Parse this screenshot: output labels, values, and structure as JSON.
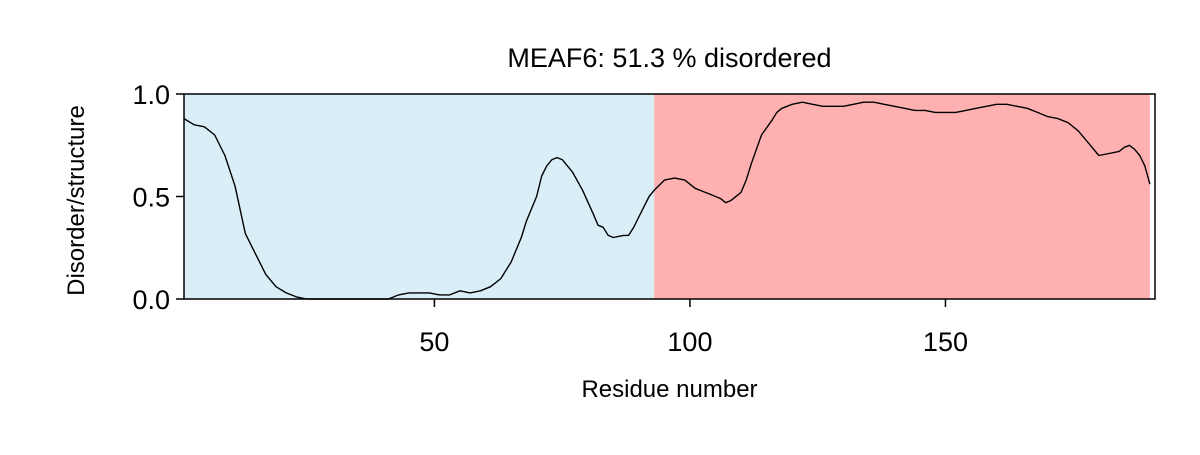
{
  "chart_data": {
    "type": "line",
    "title": "MEAF6: 51.3 % disordered",
    "xlabel": "Residue number",
    "ylabel": "Disorder/structure",
    "xlim": [
      1,
      191
    ],
    "ylim": [
      0,
      1.0
    ],
    "xticks": [
      50,
      100,
      150
    ],
    "xtick_labels": [
      "50",
      "100",
      "150"
    ],
    "yticks": [
      0.0,
      0.5,
      1.0
    ],
    "ytick_labels": [
      "0.0",
      "0.5",
      "1.0"
    ],
    "grid": false,
    "regions": [
      {
        "label": "ordered",
        "start": 1,
        "end": 93,
        "color": "#d9eef7"
      },
      {
        "label": "disordered",
        "start": 93,
        "end": 190,
        "color": "#ffb1b1"
      }
    ],
    "series": [
      {
        "color": "#000000",
        "points": [
          [
            1,
            0.88
          ],
          [
            3,
            0.85
          ],
          [
            5,
            0.84
          ],
          [
            7,
            0.8
          ],
          [
            9,
            0.7
          ],
          [
            11,
            0.55
          ],
          [
            13,
            0.32
          ],
          [
            15,
            0.22
          ],
          [
            17,
            0.12
          ],
          [
            19,
            0.06
          ],
          [
            21,
            0.03
          ],
          [
            23,
            0.01
          ],
          [
            25,
            0.0
          ],
          [
            27,
            0.0
          ],
          [
            29,
            0.0
          ],
          [
            31,
            0.0
          ],
          [
            33,
            0.0
          ],
          [
            35,
            0.0
          ],
          [
            37,
            0.0
          ],
          [
            39,
            0.0
          ],
          [
            41,
            0.0
          ],
          [
            43,
            0.02
          ],
          [
            45,
            0.03
          ],
          [
            47,
            0.03
          ],
          [
            49,
            0.03
          ],
          [
            51,
            0.02
          ],
          [
            53,
            0.02
          ],
          [
            55,
            0.04
          ],
          [
            57,
            0.03
          ],
          [
            59,
            0.04
          ],
          [
            61,
            0.06
          ],
          [
            63,
            0.1
          ],
          [
            65,
            0.18
          ],
          [
            67,
            0.3
          ],
          [
            68,
            0.38
          ],
          [
            70,
            0.5
          ],
          [
            71,
            0.6
          ],
          [
            72,
            0.65
          ],
          [
            73,
            0.68
          ],
          [
            74,
            0.69
          ],
          [
            75,
            0.68
          ],
          [
            77,
            0.62
          ],
          [
            79,
            0.53
          ],
          [
            81,
            0.42
          ],
          [
            82,
            0.36
          ],
          [
            83,
            0.35
          ],
          [
            84,
            0.31
          ],
          [
            85,
            0.3
          ],
          [
            87,
            0.31
          ],
          [
            88,
            0.31
          ],
          [
            89,
            0.35
          ],
          [
            90,
            0.4
          ],
          [
            91,
            0.45
          ],
          [
            92,
            0.5
          ],
          [
            93,
            0.53
          ],
          [
            95,
            0.58
          ],
          [
            97,
            0.59
          ],
          [
            99,
            0.58
          ],
          [
            101,
            0.54
          ],
          [
            103,
            0.52
          ],
          [
            104,
            0.51
          ],
          [
            106,
            0.49
          ],
          [
            107,
            0.47
          ],
          [
            108,
            0.48
          ],
          [
            110,
            0.52
          ],
          [
            111,
            0.58
          ],
          [
            112,
            0.66
          ],
          [
            113,
            0.73
          ],
          [
            114,
            0.8
          ],
          [
            116,
            0.87
          ],
          [
            117,
            0.91
          ],
          [
            118,
            0.93
          ],
          [
            120,
            0.95
          ],
          [
            122,
            0.96
          ],
          [
            124,
            0.95
          ],
          [
            126,
            0.94
          ],
          [
            128,
            0.94
          ],
          [
            130,
            0.94
          ],
          [
            132,
            0.95
          ],
          [
            134,
            0.96
          ],
          [
            136,
            0.96
          ],
          [
            138,
            0.95
          ],
          [
            140,
            0.94
          ],
          [
            142,
            0.93
          ],
          [
            144,
            0.92
          ],
          [
            146,
            0.92
          ],
          [
            148,
            0.91
          ],
          [
            150,
            0.91
          ],
          [
            152,
            0.91
          ],
          [
            154,
            0.92
          ],
          [
            156,
            0.93
          ],
          [
            158,
            0.94
          ],
          [
            160,
            0.95
          ],
          [
            162,
            0.95
          ],
          [
            164,
            0.94
          ],
          [
            166,
            0.93
          ],
          [
            168,
            0.91
          ],
          [
            170,
            0.89
          ],
          [
            172,
            0.88
          ],
          [
            174,
            0.86
          ],
          [
            176,
            0.82
          ],
          [
            178,
            0.76
          ],
          [
            180,
            0.7
          ],
          [
            182,
            0.71
          ],
          [
            184,
            0.72
          ],
          [
            185,
            0.74
          ],
          [
            186,
            0.75
          ],
          [
            187,
            0.73
          ],
          [
            188,
            0.7
          ],
          [
            189,
            0.65
          ],
          [
            190,
            0.56
          ]
        ]
      }
    ]
  }
}
